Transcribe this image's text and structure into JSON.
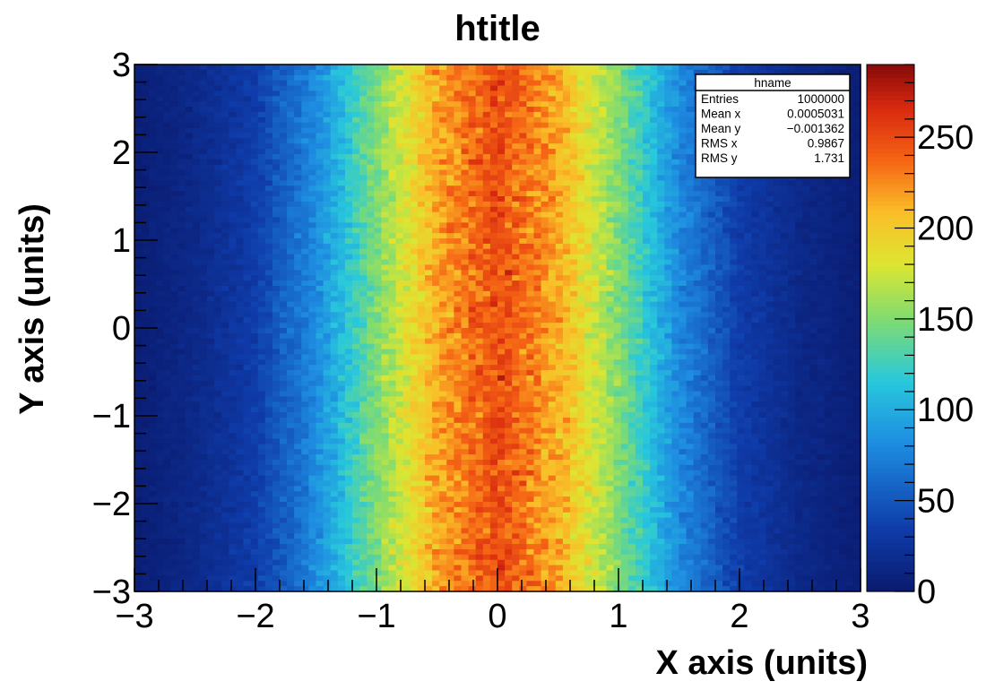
{
  "chart_data": {
    "type": "heatmap",
    "title": "htitle",
    "xlabel": "X axis (units)",
    "ylabel": "Y axis (units)",
    "xlim": [
      -3,
      3
    ],
    "ylim": [
      -3,
      3
    ],
    "zlim": [
      0,
      290
    ],
    "x_ticks": [
      "−3",
      "−2",
      "−1",
      "0",
      "1",
      "2",
      "3"
    ],
    "y_ticks": [
      "−3",
      "−2",
      "−1",
      "0",
      "1",
      "2",
      "3"
    ],
    "z_ticks": [
      "0",
      "50",
      "100",
      "150",
      "200",
      "250"
    ],
    "colormap": "rainbow",
    "colors": {
      "low": "#0a1a6e",
      "mid_low": "#1f8fe0",
      "mid": "#7fe07a",
      "mid_high": "#f0e030",
      "high": "#f04010",
      "max": "#8a0a0a"
    },
    "bins": {
      "x": 100,
      "y": 100
    },
    "profile": {
      "description": "x-distribution approx Gaussian, mean 0, sigma ~1; y approx uniform",
      "x_bin_centers": [
        -2.97,
        -2.5,
        -2.0,
        -1.5,
        -1.0,
        -0.5,
        0.0,
        0.5,
        1.0,
        1.5,
        2.0,
        2.5,
        2.97
      ],
      "counts": [
        5,
        15,
        35,
        80,
        150,
        215,
        250,
        215,
        150,
        80,
        35,
        15,
        5
      ]
    },
    "stats_box": {
      "name": "hname",
      "rows": [
        {
          "label": "Entries",
          "value": "1000000"
        },
        {
          "label": "Mean x",
          "value": "0.0005031"
        },
        {
          "label": "Mean y",
          "value": "−0.001362"
        },
        {
          "label": "RMS x",
          "value": "0.9867"
        },
        {
          "label": "RMS y",
          "value": "1.731"
        }
      ]
    }
  }
}
